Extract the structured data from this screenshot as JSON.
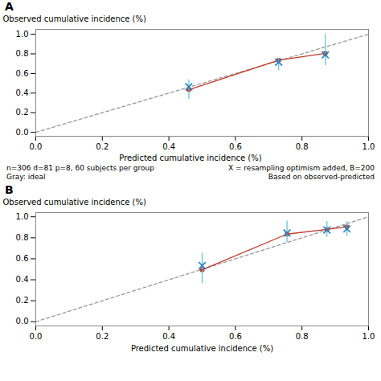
{
  "chart_data": [
    {
      "type": "line",
      "title": "A",
      "ylabel": "Observed cumulative incidence (%)",
      "xlim": [
        0.0,
        1.0
      ],
      "ylim": [
        -0.04,
        1.05
      ],
      "xticks": [
        {
          "value": 0.0,
          "label": "0.0"
        },
        0.2,
        0.4,
        0.6,
        0.8,
        {
          "value": 1.0,
          "label": "1.0"
        }
      ],
      "yticks": [
        {
          "value": 0.0,
          "label": "0.0"
        },
        0.2,
        0.4,
        0.6,
        0.8,
        {
          "value": 1.0,
          "label": "1.0"
        }
      ],
      "grid": false,
      "annotations": [
        "n=306 d=81 p=8, 60 subjects per group\nGray: ideal",
        "Predicted cumulative incidence (%)",
        "X = resampling optimism added, B=200\nBased on observed-predicted"
      ],
      "series": [
        {
          "type": "line",
          "line_style": "dashed",
          "color": "#999999",
          "x": [
            0,
            1
          ],
          "values": [
            0,
            1
          ]
        },
        {
          "type": "line",
          "line_style": "solid",
          "marker": "o",
          "color": "#c0392b",
          "x": [
            0.46,
            0.73,
            0.87
          ],
          "values": [
            0.435,
            0.735,
            0.805
          ]
        },
        {
          "type": "errorbar",
          "color": "#5bbfde",
          "x": [
            0.46,
            0.73,
            0.87
          ],
          "low": [
            0.335,
            0.63,
            0.68
          ],
          "high": [
            0.535,
            0.755,
            1.0
          ]
        },
        {
          "type": "scatter",
          "marker": "x",
          "color": "#2980b9",
          "x": [
            0.46,
            0.73,
            0.87
          ],
          "values": [
            0.465,
            0.715,
            0.79
          ]
        }
      ]
    },
    {
      "type": "line",
      "title": "B",
      "xlabel": "Predicted cumulative incidence (%)",
      "ylabel": "Observed cumulative incidence (%)",
      "xlim": [
        0.0,
        1.0
      ],
      "ylim": [
        -0.04,
        1.04
      ],
      "xticks": [
        {
          "value": 0.0,
          "label": "0.0"
        },
        0.2,
        0.4,
        0.6,
        0.8,
        {
          "value": 1.0,
          "label": "1.0"
        }
      ],
      "yticks": [
        {
          "value": 0.0,
          "label": "0.0"
        },
        0.2,
        0.4,
        0.6,
        0.8,
        {
          "value": 1.0,
          "label": "1.0"
        }
      ],
      "grid": false,
      "series": [
        {
          "type": "line",
          "line_style": "dashed",
          "color": "#999999",
          "x": [
            0,
            1
          ],
          "values": [
            0,
            1
          ]
        },
        {
          "type": "line",
          "line_style": "solid",
          "marker": "o",
          "color": "#c0392b",
          "x": [
            0.5,
            0.755,
            0.875,
            0.935
          ],
          "values": [
            0.495,
            0.835,
            0.88,
            0.905
          ]
        },
        {
          "type": "errorbar",
          "color": "#5bbfde",
          "x": [
            0.5,
            0.755,
            0.875,
            0.935
          ],
          "low": [
            0.365,
            0.755,
            0.805,
            0.815
          ],
          "high": [
            0.655,
            0.96,
            0.955,
            0.955
          ]
        },
        {
          "type": "scatter",
          "marker": "x",
          "color": "#2980b9",
          "x": [
            0.5,
            0.755,
            0.875,
            0.935
          ],
          "values": [
            0.535,
            0.845,
            0.875,
            0.885
          ]
        }
      ]
    }
  ]
}
